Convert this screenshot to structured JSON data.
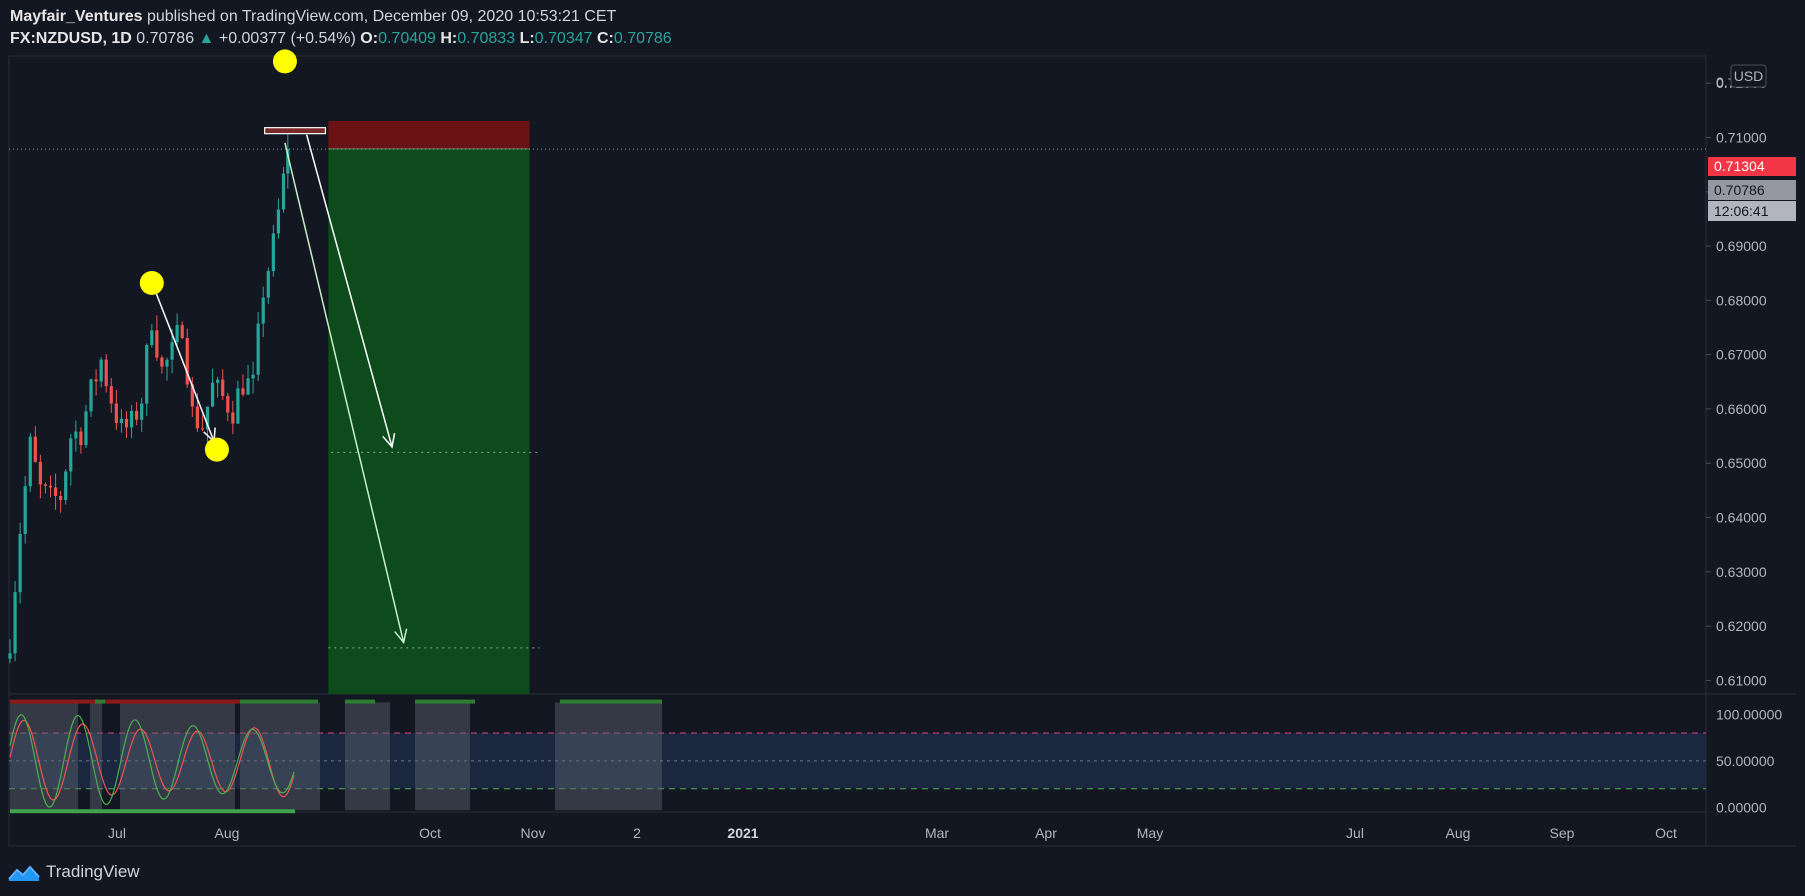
{
  "header": {
    "author": "Mayfair_Ventures",
    "published_text": "published on TradingView.com, December 09, 2020 10:53:21 CET",
    "symbol": "FX:NZDUSD",
    "interval": "1D",
    "last": "0.70786",
    "arrow": "▲",
    "change": "+0.00377 (+0.54%)",
    "o_label": "O:",
    "o": "0.70409",
    "h_label": "H:",
    "h": "0.70833",
    "l_label": "L:",
    "l": "0.70347",
    "c_label": "C:",
    "c": "0.70786"
  },
  "price_axis": {
    "currency": "USD",
    "top_partial": "0.",
    "badge_stop": "0.71304",
    "badge_last": "0.70786",
    "badge_countdown": "12:06:41"
  },
  "indicator_axis": [
    "100.00000",
    "50.00000",
    "0.00000"
  ],
  "time_axis": [
    {
      "label": "Jul",
      "bold": false
    },
    {
      "label": "Aug",
      "bold": false
    },
    {
      "label": "Oct",
      "bold": false
    },
    {
      "label": "Nov",
      "bold": false
    },
    {
      "label": "2",
      "bold": false
    },
    {
      "label": "2021",
      "bold": true
    },
    {
      "label": "Mar",
      "bold": false
    },
    {
      "label": "Apr",
      "bold": false
    },
    {
      "label": "May",
      "bold": false
    },
    {
      "label": "Jul",
      "bold": false
    },
    {
      "label": "Aug",
      "bold": false
    },
    {
      "label": "Sep",
      "bold": false
    },
    {
      "label": "Oct",
      "bold": false
    }
  ],
  "footer": {
    "brand": "TradingView"
  },
  "colors": {
    "up": "#26a69a",
    "down": "#ef5350",
    "stop_zone": "#7a1212",
    "profit_zone": "#0d4a1c",
    "marker": "#ffff00",
    "stop_badge": "#f23645"
  },
  "chart_data": {
    "type": "candlestick",
    "symbol": "FX:NZDUSD",
    "interval": "1D",
    "y_ticks": [
      0.72,
      0.71,
      0.7,
      0.69,
      0.68,
      0.67,
      0.66,
      0.65,
      0.64,
      0.63,
      0.62,
      0.61
    ],
    "ylim": [
      0.6075,
      0.725
    ],
    "close_path": [
      {
        "date": "2020-05-26",
        "close": 0.618
      },
      {
        "date": "2020-06-02",
        "close": 0.638
      },
      {
        "date": "2020-06-09",
        "close": 0.653
      },
      {
        "date": "2020-06-16",
        "close": 0.645
      },
      {
        "date": "2020-06-23",
        "close": 0.643
      },
      {
        "date": "2020-06-30",
        "close": 0.644
      },
      {
        "date": "2020-07-07",
        "close": 0.655
      },
      {
        "date": "2020-07-14",
        "close": 0.656
      },
      {
        "date": "2020-07-21",
        "close": 0.663
      },
      {
        "date": "2020-07-28",
        "close": 0.669
      },
      {
        "date": "2020-08-04",
        "close": 0.662
      },
      {
        "date": "2020-08-11",
        "close": 0.656
      },
      {
        "date": "2020-08-18",
        "close": 0.657
      },
      {
        "date": "2020-08-25",
        "close": 0.662
      },
      {
        "date": "2020-09-01",
        "close": 0.677
      },
      {
        "date": "2020-09-08",
        "close": 0.667
      },
      {
        "date": "2020-09-15",
        "close": 0.67
      },
      {
        "date": "2020-09-22",
        "close": 0.676
      },
      {
        "date": "2020-09-29",
        "close": 0.659
      },
      {
        "date": "2020-10-06",
        "close": 0.657
      },
      {
        "date": "2020-10-13",
        "close": 0.664
      },
      {
        "date": "2020-10-20",
        "close": 0.662
      },
      {
        "date": "2020-10-27",
        "close": 0.66
      },
      {
        "date": "2020-11-03",
        "close": 0.665
      },
      {
        "date": "2020-11-10",
        "close": 0.664
      },
      {
        "date": "2020-11-17",
        "close": 0.682
      },
      {
        "date": "2020-11-24",
        "close": 0.69
      },
      {
        "date": "2020-12-01",
        "close": 0.702
      },
      {
        "date": "2020-12-04",
        "close": 0.709
      },
      {
        "date": "2020-12-09",
        "close": 0.7079
      }
    ],
    "short_position": {
      "entry_date": "2021-01-01",
      "end_date": "2021-05-20",
      "entry": 0.7079,
      "stop": 0.71304,
      "target": 0.6075
    },
    "resistance_zone": {
      "from": "2020-11-18",
      "to": "2020-12-30",
      "low": 0.7107,
      "high": 0.7118
    },
    "targets": [
      0.652,
      0.616
    ],
    "markers": [
      {
        "date": "2020-09-01",
        "price": 0.6832
      },
      {
        "date": "2020-10-16",
        "price": 0.6525
      },
      {
        "date": "2020-12-02",
        "price": 0.724
      }
    ],
    "arrows": [
      {
        "from_date": "2020-09-03",
        "from_price": 0.682,
        "to_date": "2020-10-14",
        "to_price": 0.654
      },
      {
        "from_date": "2020-12-17",
        "from_price": 0.7105,
        "to_date": "2021-02-14",
        "to_price": 0.653
      },
      {
        "from_date": "2020-12-02",
        "from_price": 0.709,
        "to_date": "2021-02-22",
        "to_price": 0.617
      }
    ],
    "indicator": {
      "ylim": [
        -5,
        122
      ],
      "levels": [
        80,
        50,
        20
      ]
    }
  }
}
